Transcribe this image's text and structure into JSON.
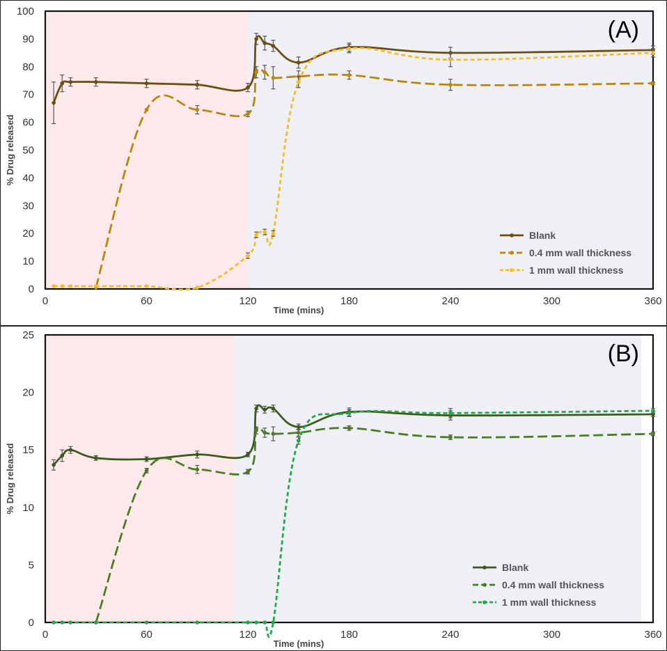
{
  "chart_data": [
    {
      "type": "line",
      "panel_label": "(A)",
      "xlabel": "Time (mins)",
      "ylabel": "% Drug released",
      "xlim": [
        0,
        360
      ],
      "ylim": [
        0,
        100
      ],
      "xticks": [
        0,
        60,
        120,
        180,
        240,
        300,
        360
      ],
      "yticks": [
        0,
        10,
        20,
        30,
        40,
        50,
        60,
        70,
        80,
        90,
        100
      ],
      "shaded_regions": [
        {
          "from": 0,
          "to": 120,
          "color": "#fde9e9"
        },
        {
          "from": 120,
          "to": 360,
          "color": "#eef0f5"
        }
      ],
      "legend_position": "bottom-right",
      "series": [
        {
          "name": "Blank",
          "color": "#6b4f12",
          "style": "solid",
          "x": [
            5,
            10,
            15,
            30,
            60,
            90,
            120,
            125,
            130,
            135,
            150,
            180,
            240,
            360
          ],
          "y": [
            67,
            74,
            74.5,
            74.5,
            74,
            73.5,
            72.5,
            90,
            88.5,
            87.5,
            81.5,
            87,
            85,
            86
          ],
          "err": [
            7.5,
            3,
            1.5,
            1.5,
            1.5,
            1.5,
            1.5,
            2,
            2.5,
            2,
            2,
            1.5,
            2,
            1.5
          ]
        },
        {
          "name": "0.4 mm wall thickness",
          "color": "#b8860b",
          "style": "dashed",
          "x": [
            30,
            60,
            90,
            120,
            125,
            130,
            135,
            150,
            180,
            240,
            360
          ],
          "y": [
            0.5,
            64.5,
            64.5,
            63,
            78,
            78,
            76,
            76.5,
            77,
            73.5,
            74
          ],
          "err": [
            0,
            0,
            1.5,
            1,
            2,
            2.5,
            4,
            2,
            1.5,
            2,
            0.5
          ]
        },
        {
          "name": "1 mm wall thickness",
          "color": "#f2bc2b",
          "style": "dashed",
          "x": [
            5,
            10,
            15,
            30,
            60,
            90,
            120,
            125,
            130,
            135,
            150,
            180,
            240,
            360
          ],
          "y": [
            1,
            1,
            1,
            1,
            1,
            0.5,
            12,
            19.5,
            20.5,
            20,
            74.5,
            86.5,
            82.5,
            85
          ],
          "err": [
            0,
            0,
            0,
            0,
            0,
            0,
            1,
            1,
            1,
            1,
            2,
            1.5,
            2.5,
            1.5
          ]
        }
      ]
    },
    {
      "type": "line",
      "panel_label": "(B)",
      "xlabel": "Time (mins)",
      "ylabel": "% Drug released",
      "xlim": [
        0,
        360
      ],
      "ylim": [
        0,
        25
      ],
      "xticks": [
        0,
        60,
        120,
        180,
        240,
        300,
        360
      ],
      "yticks": [
        0,
        5,
        10,
        15,
        20,
        25
      ],
      "shaded_regions": [
        {
          "from": 0,
          "to": 112,
          "color": "#fde9e9"
        },
        {
          "from": 112,
          "to": 353,
          "color": "#eef0f5"
        }
      ],
      "legend_position": "bottom-right",
      "series": [
        {
          "name": "Blank",
          "color": "#3d5a1e",
          "style": "solid",
          "x": [
            5,
            10,
            15,
            30,
            60,
            90,
            120,
            125,
            130,
            135,
            150,
            180,
            240,
            360
          ],
          "y": [
            13.7,
            14.5,
            15,
            14.3,
            14.2,
            14.6,
            14.6,
            18.6,
            18.5,
            18.6,
            17,
            18.3,
            18,
            18.1
          ],
          "err": [
            0.45,
            0.5,
            0.3,
            0.2,
            0.2,
            0.3,
            0.2,
            0.3,
            0.3,
            0.3,
            0.25,
            0.35,
            0.4,
            0.2
          ]
        },
        {
          "name": "0.4 mm wall thickness",
          "color": "#4a7c24",
          "style": "dashed",
          "x": [
            30,
            60,
            90,
            120,
            125,
            130,
            135,
            150,
            180,
            240,
            360
          ],
          "y": [
            0,
            13.2,
            13.3,
            13.1,
            16.7,
            16.5,
            16.4,
            16.5,
            16.9,
            16.1,
            16.4
          ],
          "err": [
            0,
            0.2,
            0.35,
            0.2,
            0.3,
            0.4,
            0.6,
            0.3,
            0.2,
            0.2,
            0.15
          ]
        },
        {
          "name": "1 mm wall thickness",
          "color": "#22a846",
          "style": "dashed",
          "x": [
            5,
            10,
            15,
            30,
            60,
            90,
            120,
            125,
            130,
            135,
            150,
            180,
            240,
            360
          ],
          "y": [
            0,
            0,
            0,
            0,
            0,
            0,
            0,
            0,
            0,
            0,
            15.8,
            18.2,
            18.2,
            18.4
          ],
          "err": [
            0,
            0,
            0,
            0,
            0,
            0,
            0,
            0,
            0,
            0,
            0.3,
            0.3,
            0.4,
            0.2
          ]
        }
      ]
    }
  ]
}
